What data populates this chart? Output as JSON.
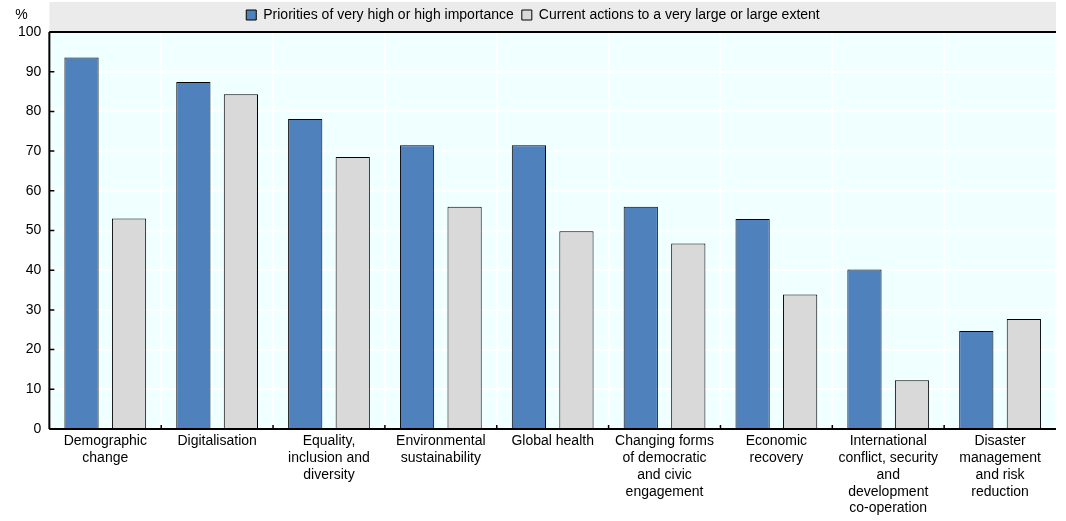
{
  "chart_data": {
    "type": "bar",
    "ylabel": "%",
    "categories": [
      "Demographic change",
      "Digitalisation",
      "Equality, inclusion and diversity",
      "Environmental sustainability",
      "Global health",
      "Changing forms of democratic and civic engagement",
      "Economic recovery",
      "International conflict, security and development co-operation",
      "Disaster management and risk reduction"
    ],
    "series": [
      {
        "name": "Priorities of very high or high importance",
        "color": "#4f81bd",
        "values": [
          93.6,
          87.4,
          78.1,
          71.5,
          71.5,
          56,
          52.9,
          40.2,
          24.7
        ]
      },
      {
        "name": "Current actions to a very large or large extent",
        "color": "#d9d9d9",
        "values": [
          53,
          84.3,
          68.5,
          56,
          49.8,
          46.7,
          33.9,
          12.3,
          27.7
        ]
      }
    ],
    "ylim": [
      0,
      100
    ],
    "yticks": [
      0,
      10,
      20,
      30,
      40,
      50,
      60,
      70,
      80,
      90,
      100
    ],
    "grid": true,
    "legend": "top"
  }
}
